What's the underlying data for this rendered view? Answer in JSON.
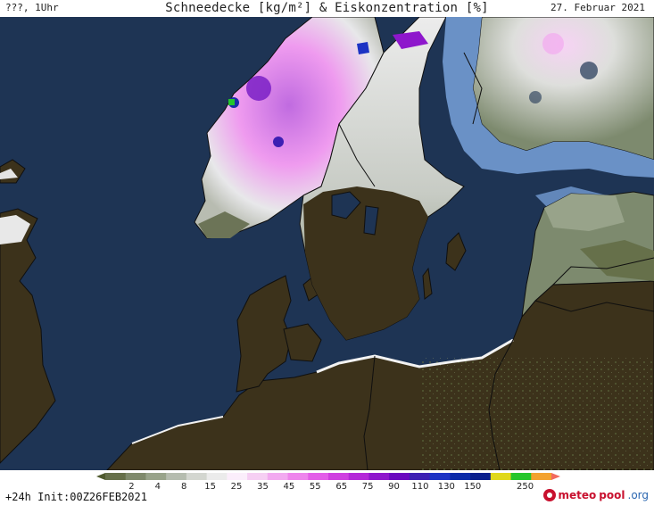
{
  "header": {
    "left": "???, 1Uhr",
    "title": "Schneedecke [kg/m²] & Eiskonzentration [%]",
    "date": "27. Februar 2021"
  },
  "legend": {
    "ticks": [
      "2",
      "4",
      "8",
      "15",
      "25",
      "35",
      "45",
      "55",
      "65",
      "75",
      "90",
      "110",
      "130",
      "150",
      "250"
    ],
    "colors": [
      "#4f5a2e",
      "#66704a",
      "#7f8a6c",
      "#98a38a",
      "#b5bcaf",
      "#d3d6d0",
      "#ebebeb",
      "#fbeefb",
      "#f6cff3",
      "#f2aaf0",
      "#ee85ec",
      "#e35ee8",
      "#cf3fe0",
      "#b428d8",
      "#8e17cc",
      "#6a08bf",
      "#3d1fb3",
      "#1d33c4",
      "#0b2aa8",
      "#0a1f8c",
      "#e0d81a",
      "#25c62c",
      "#f3a22f",
      "#f26a5e"
    ]
  },
  "footer": {
    "run": "+24h  Init:00Z26FEB2021"
  },
  "brand": {
    "meteo": "meteo",
    "pool": "pool",
    "tld": ".org"
  },
  "colors": {
    "sea": "#1e3454",
    "land": "#3c321b",
    "sea_ice": "#6f97cc",
    "border": "#0f0f0f"
  }
}
